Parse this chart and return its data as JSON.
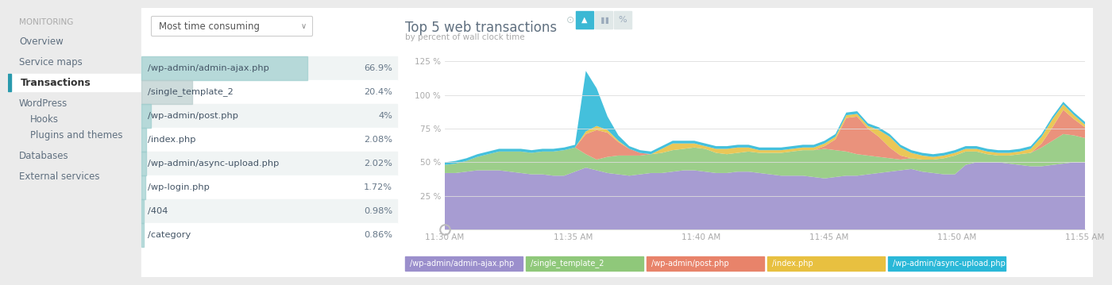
{
  "bg_color": "#ebebeb",
  "white": "#ffffff",
  "sidebar_bg": "#ebebeb",
  "sidebar_active_bg": "#ffffff",
  "sidebar_active_border": "#2a9aad",
  "sidebar_title_color": "#aaaaaa",
  "sidebar_link_color": "#607080",
  "sidebar_active_color": "#333333",
  "sidebar_items": [
    "MONITORING",
    "Overview",
    "Service maps",
    "Transactions",
    "WordPress",
    "Hooks",
    "Plugins and themes",
    "Databases",
    "External services"
  ],
  "sidebar_indented": [
    "Hooks",
    "Plugins and themes"
  ],
  "dropdown_text": "Most time consuming",
  "bar_items": [
    {
      "label": "/wp-admin/admin-ajax.php",
      "value": 66.9,
      "pct": "66.9%",
      "bar_color": "#9ecece"
    },
    {
      "label": "/single_template_2",
      "value": 20.4,
      "pct": "20.4%",
      "bar_color": "#b8cccc"
    },
    {
      "label": "/wp-admin/post.php",
      "value": 4.0,
      "pct": "4%",
      "bar_color": "#9ecece"
    },
    {
      "label": "/index.php",
      "value": 2.08,
      "pct": "2.08%",
      "bar_color": "#9ecece"
    },
    {
      "label": "/wp-admin/async-upload.php",
      "value": 2.02,
      "pct": "2.02%",
      "bar_color": "#9ecece"
    },
    {
      "label": "/wp-login.php",
      "value": 1.72,
      "pct": "1.72%",
      "bar_color": "#9ecece"
    },
    {
      "label": "/404",
      "value": 0.98,
      "pct": "0.98%",
      "bar_color": "#9ecece"
    },
    {
      "label": "/category",
      "value": 0.86,
      "pct": "0.86%",
      "bar_color": "#9ecece"
    }
  ],
  "chart_title": "Top 5 web transactions",
  "chart_subtitle": "by percent of wall clock time",
  "chart_ytick_vals": [
    25,
    50,
    75,
    100,
    125
  ],
  "chart_xticks": [
    "11:30 AM",
    "11:35 AM",
    "11:40 AM",
    "11:45 AM",
    "11:50 AM",
    "11:55 AM"
  ],
  "legend_items": [
    {
      "label": "/wp-admin/admin-ajax.php",
      "color": "#9b8fcc"
    },
    {
      "label": "/single_template_2",
      "color": "#8fc87a"
    },
    {
      "label": "/wp-admin/post.php",
      "color": "#e8836a"
    },
    {
      "label": "/index.php",
      "color": "#e8c040"
    },
    {
      "label": "/wp-admin/async-upload.php",
      "color": "#2ab8d8"
    }
  ],
  "series_colors": [
    "#9b8fcc",
    "#8fc87a",
    "#e8836a",
    "#e8c040",
    "#2ab8d8"
  ]
}
